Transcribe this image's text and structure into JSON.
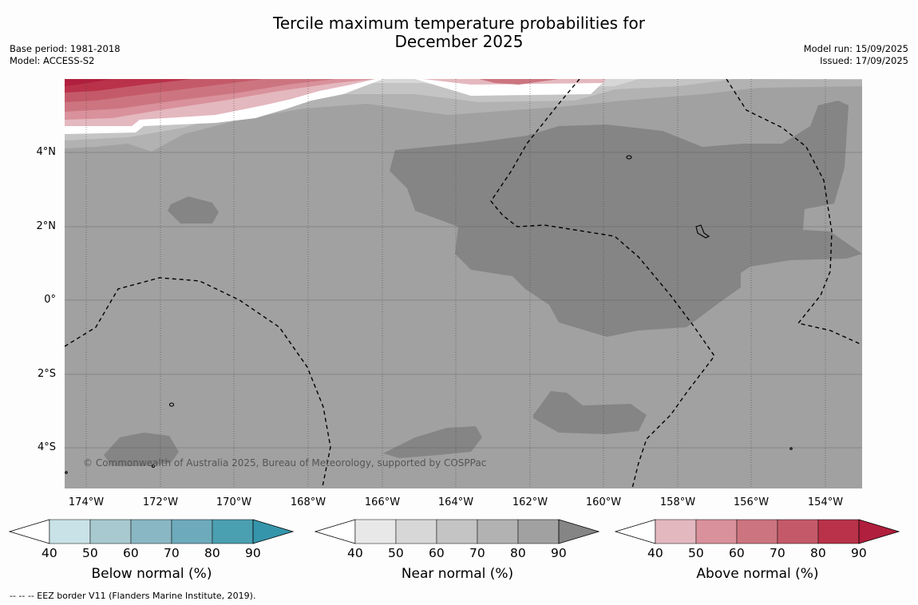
{
  "title_line1": "Tercile maximum temperature probabilities for",
  "title_line2": "December 2025",
  "base_period": "Base period: 1981-2018",
  "model": "Model: ACCESS-S2",
  "model_run": "Model run: 15/09/2025",
  "issued": "Issued: 17/09/2025",
  "lat_labels": [
    "4°N",
    "2°N",
    "0°",
    "2°S",
    "4°S"
  ],
  "lon_labels": [
    "174°W",
    "172°W",
    "170°W",
    "168°W",
    "166°W",
    "164°W",
    "162°W",
    "160°W",
    "158°W",
    "156°W",
    "154°W"
  ],
  "credit": "© Commonwealth of Australia 2025, Bureau of Meteorology, supported by COSPPac",
  "colorbars": [
    {
      "label": "Below normal (%)",
      "ticks": [
        "40",
        "50",
        "60",
        "70",
        "80",
        "90"
      ],
      "colors": [
        "#ffffff",
        "#c9e2e8",
        "#a8c9cf",
        "#8ab7c4",
        "#6daabb",
        "#4a9fb1",
        "#3595ab"
      ]
    },
    {
      "label": "Near normal (%)",
      "ticks": [
        "40",
        "50",
        "60",
        "70",
        "80",
        "90"
      ],
      "colors": [
        "#ffffff",
        "#e8e8e8",
        "#d7d7d7",
        "#c4c4c4",
        "#b2b2b2",
        "#a1a1a1",
        "#858585"
      ]
    },
    {
      "label": "Above normal (%)",
      "ticks": [
        "40",
        "50",
        "60",
        "70",
        "80",
        "90"
      ],
      "colors": [
        "#ffffff",
        "#e4b8bf",
        "#d9919b",
        "#cc7580",
        "#c45a69",
        "#b93249",
        "#b01f3d"
      ]
    }
  ],
  "footnote": "--  --  -- EEZ border V11 (Flanders Marine Institute, 2019)."
}
